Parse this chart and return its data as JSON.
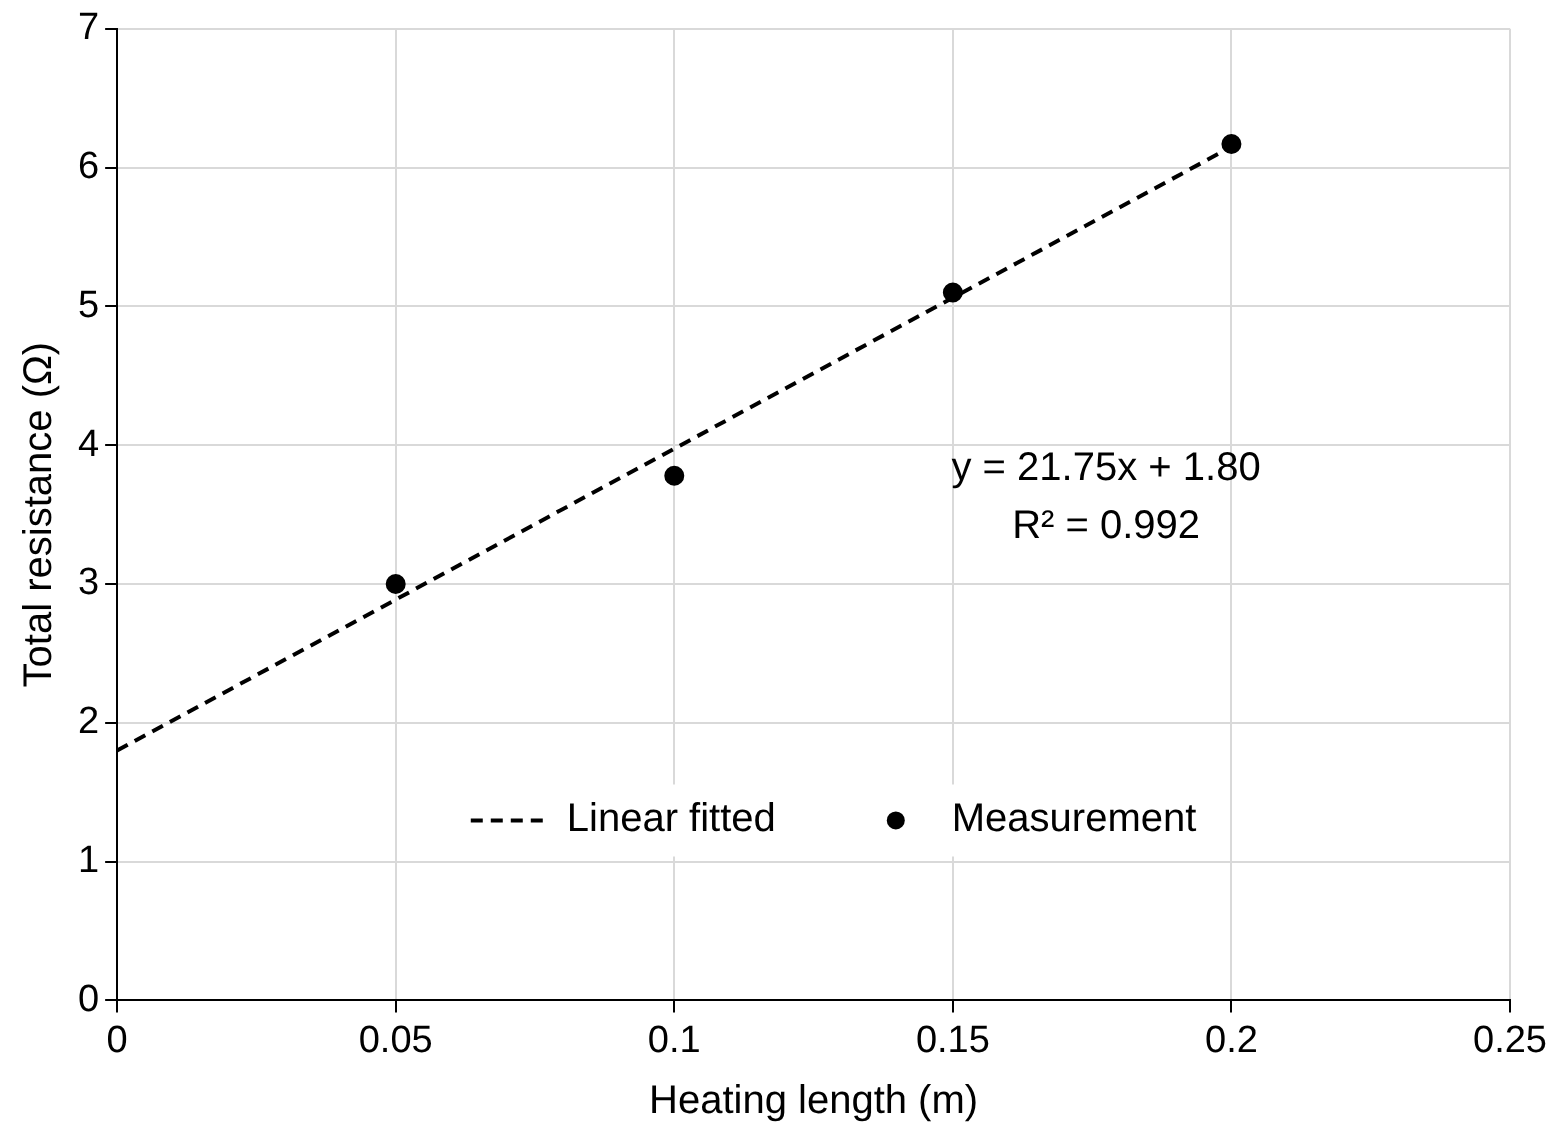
{
  "chart_data": {
    "type": "scatter",
    "xlabel": "Heating length (m)",
    "ylabel": "Total resistance (Ω)",
    "xlim": [
      0,
      0.25
    ],
    "xticks": [
      0,
      0.05,
      0.1,
      0.15,
      0.2,
      0.25
    ],
    "ylim": [
      0,
      7
    ],
    "yticks": [
      0,
      1,
      2,
      3,
      4,
      5,
      6,
      7
    ],
    "grid": true,
    "legend": "bottom",
    "marker": "circle",
    "series": [
      {
        "name": "Linear fitted",
        "type": "line",
        "color": "#000000",
        "line_style": "dashed",
        "marker": "none",
        "x": [
          0,
          0.2
        ],
        "values": [
          1.8,
          6.15
        ]
      },
      {
        "name": "Measurement",
        "color": "#000000",
        "x": [
          0.05,
          0.1,
          0.15,
          0.2
        ],
        "values": [
          3.0,
          3.78,
          5.1,
          6.17
        ]
      }
    ],
    "annotations": [
      "y = 21.75x + 1.80",
      "R² = 0.992"
    ]
  }
}
